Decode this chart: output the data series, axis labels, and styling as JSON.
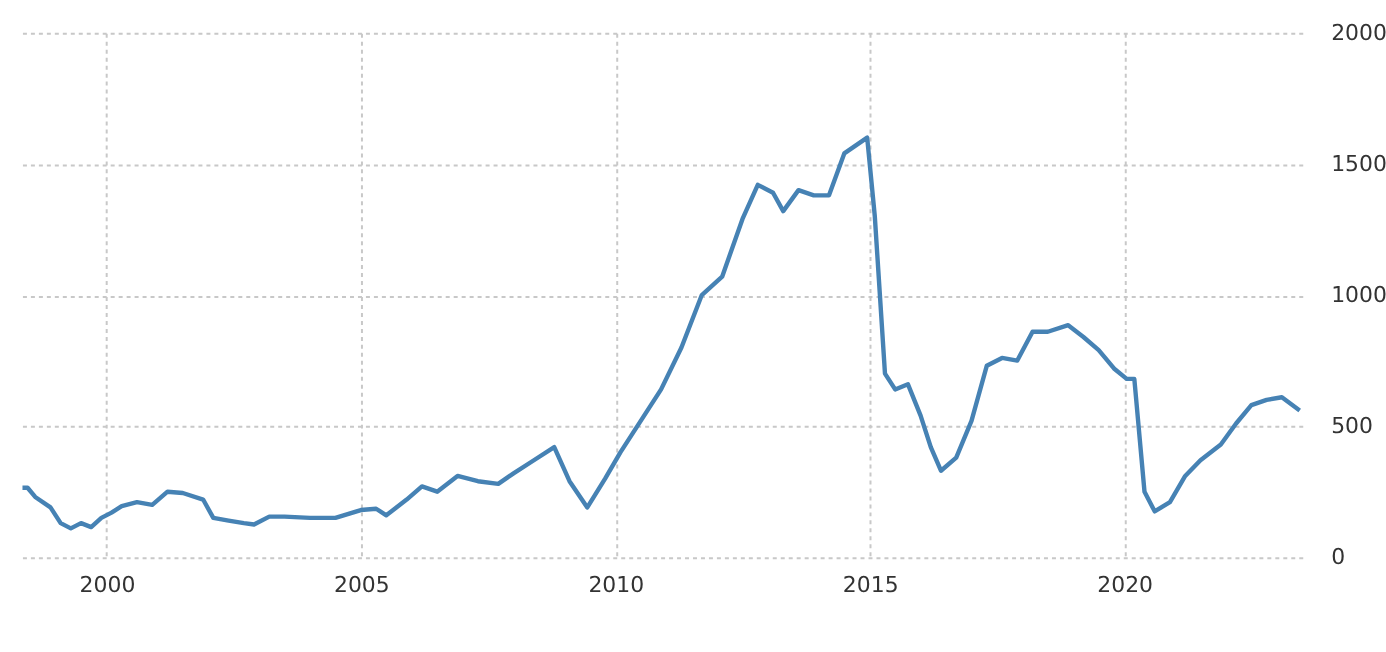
{
  "chart_data": {
    "type": "line",
    "series": [
      {
        "color": "#4682b4",
        "x": [
          1998.35,
          1998.45,
          1998.6,
          1998.9,
          1999.1,
          1999.3,
          1999.5,
          1999.7,
          1999.9,
          2000.1,
          2000.3,
          2000.6,
          2000.9,
          2001.2,
          2001.5,
          2001.9,
          2002.1,
          2002.4,
          2002.7,
          2002.9,
          2003.2,
          2003.5,
          2004.0,
          2004.5,
          2005.0,
          2005.3,
          2005.5,
          2005.9,
          2006.2,
          2006.5,
          2006.9,
          2007.3,
          2007.7,
          2008.0,
          2008.4,
          2008.8,
          2009.1,
          2009.45,
          2009.8,
          2010.1,
          2010.5,
          2010.9,
          2011.3,
          2011.7,
          2012.1,
          2012.5,
          2012.8,
          2013.1,
          2013.3,
          2013.6,
          2013.9,
          2014.2,
          2014.5,
          2014.8,
          2014.95,
          2015.1,
          2015.3,
          2015.5,
          2015.75,
          2016.0,
          2016.2,
          2016.4,
          2016.7,
          2017.0,
          2017.3,
          2017.6,
          2017.9,
          2018.2,
          2018.5,
          2018.9,
          2019.2,
          2019.5,
          2019.8,
          2020.05,
          2020.2,
          2020.4,
          2020.6,
          2020.9,
          2021.2,
          2021.5,
          2021.9,
          2022.2,
          2022.5,
          2022.8,
          2023.1,
          2023.45
        ],
        "values": [
          265,
          265,
          230,
          190,
          130,
          110,
          130,
          115,
          150,
          170,
          195,
          210,
          200,
          250,
          245,
          220,
          150,
          140,
          130,
          125,
          155,
          155,
          150,
          150,
          180,
          185,
          160,
          220,
          270,
          250,
          310,
          290,
          280,
          320,
          370,
          420,
          290,
          190,
          300,
          400,
          520,
          640,
          800,
          1000,
          1070,
          1290,
          1420,
          1390,
          1320,
          1400,
          1380,
          1380,
          1540,
          1580,
          1600,
          1300,
          700,
          640,
          660,
          540,
          420,
          330,
          380,
          520,
          730,
          760,
          750,
          860,
          860,
          885,
          840,
          790,
          720,
          680,
          680,
          250,
          175,
          210,
          310,
          370,
          430,
          510,
          580,
          600,
          610,
          560
        ]
      }
    ],
    "xlim": [
      1998.3,
      2023.5
    ],
    "xticks": [
      2000,
      2005,
      2010,
      2015,
      2020
    ],
    "ylim": [
      0,
      2000
    ],
    "yticks": [
      0,
      500,
      1000,
      1500,
      2000
    ],
    "grid": true,
    "marker": "none",
    "line_style": "solid"
  }
}
